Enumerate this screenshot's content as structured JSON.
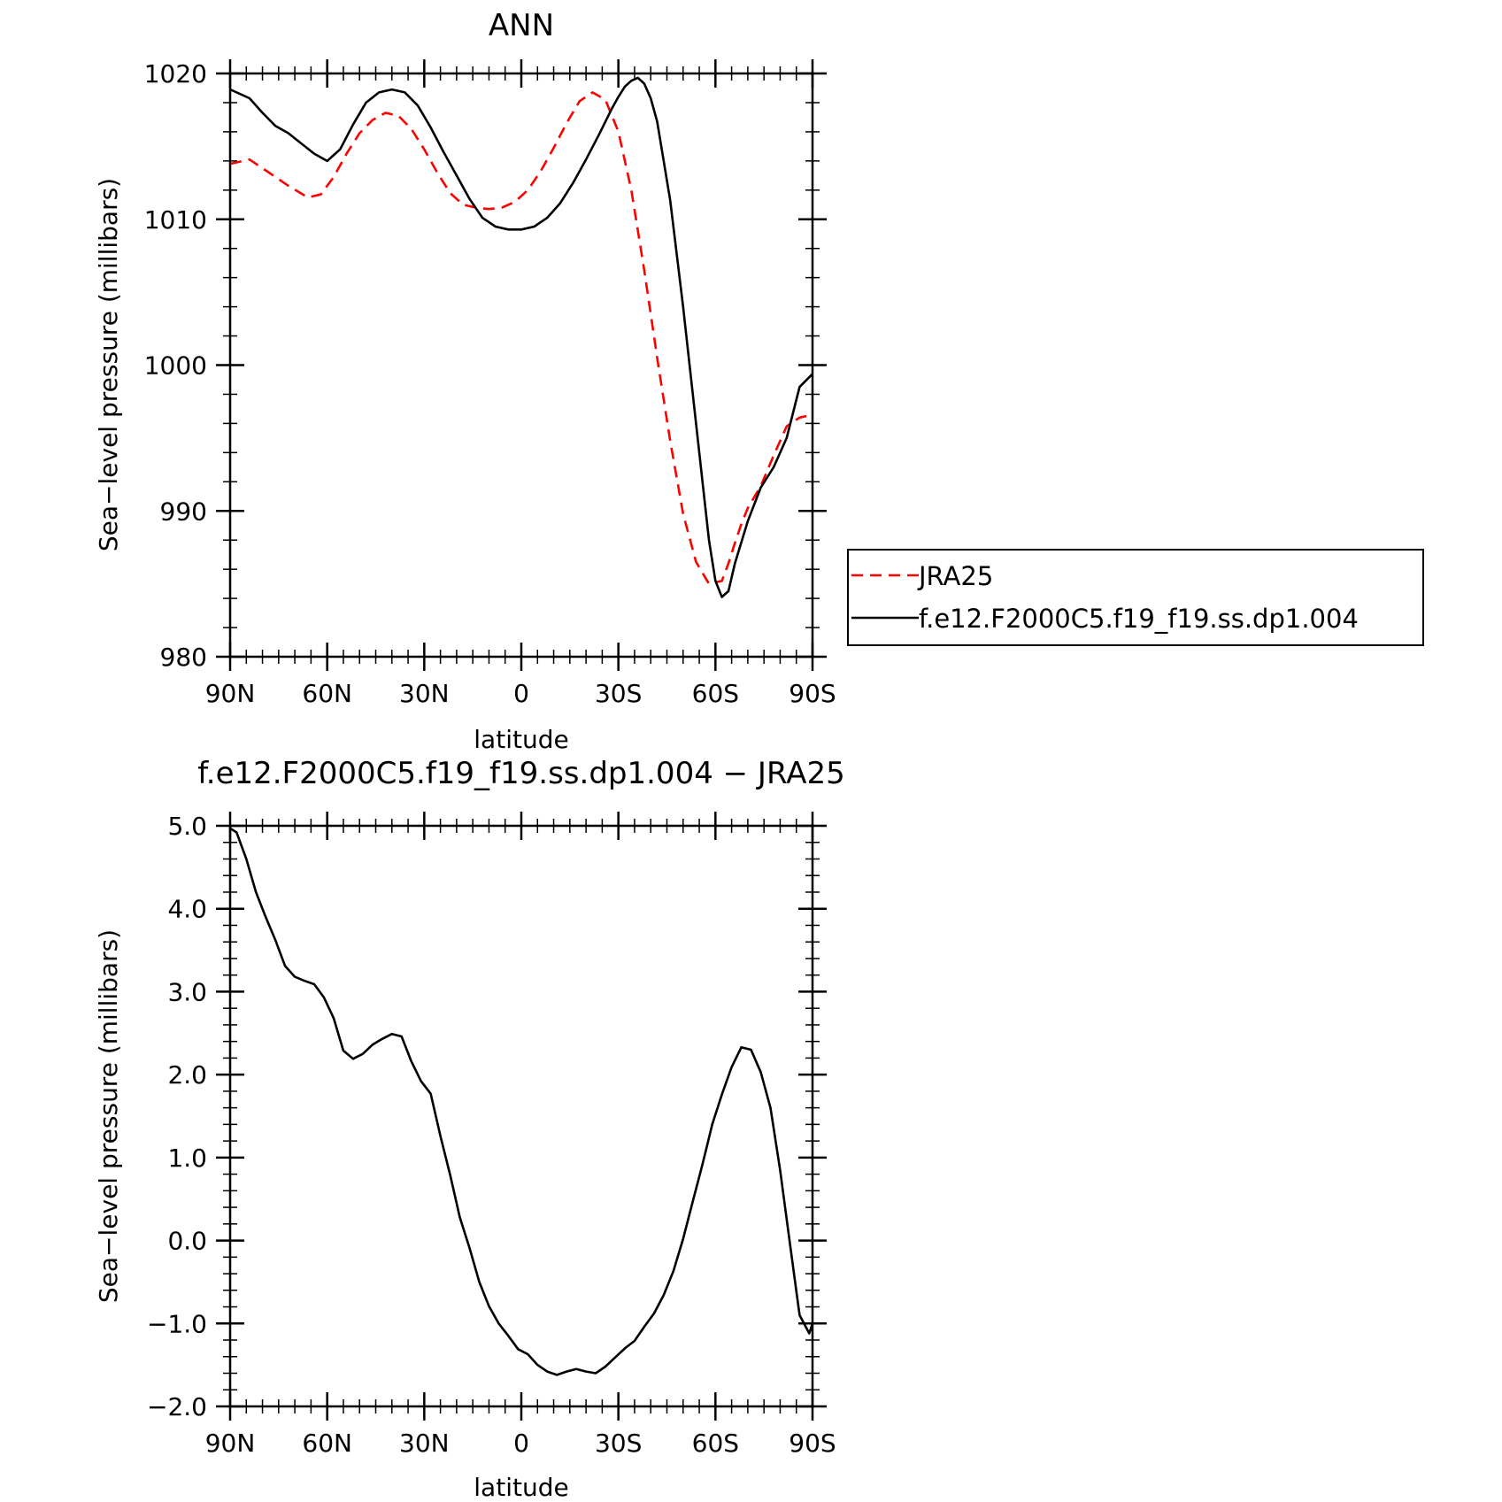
{
  "chart_data": [
    {
      "type": "line",
      "title": "ANN",
      "xlabel": "latitude",
      "ylabel": "Sea−level pressure (millibars)",
      "xlim": [
        90,
        -90
      ],
      "ylim": [
        980,
        1020
      ],
      "x_ticks": [
        90,
        60,
        30,
        0,
        -30,
        -60,
        -90
      ],
      "x_tick_labels": [
        "90N",
        "60N",
        "30N",
        "0",
        "30S",
        "60S",
        "90S"
      ],
      "y_ticks": [
        980,
        990,
        1000,
        1010,
        1020
      ],
      "y_tick_labels": [
        "980",
        "990",
        "1000",
        "1010",
        "1020"
      ],
      "legend": "right",
      "series": [
        {
          "name": "JRA25",
          "color": "#ff0000",
          "dash": "dashed",
          "x": [
            90,
            84,
            78,
            72,
            66,
            62,
            58,
            54,
            50,
            46,
            42,
            38,
            34,
            30,
            26,
            22,
            18,
            14,
            10,
            6,
            2,
            -2,
            -6,
            -10,
            -14,
            -18,
            -22,
            -26,
            -30,
            -34,
            -38,
            -42,
            -46,
            -50,
            -54,
            -58,
            -62,
            -64,
            -66,
            -68,
            -70,
            -74,
            -78,
            -82,
            -86,
            -90
          ],
          "values": [
            1013.8,
            1014.1,
            1013.2,
            1012.3,
            1011.5,
            1011.7,
            1012.9,
            1014.5,
            1015.9,
            1016.8,
            1017.3,
            1017.1,
            1016.2,
            1014.8,
            1013.2,
            1011.8,
            1011.0,
            1010.8,
            1010.7,
            1010.8,
            1011.2,
            1012.0,
            1013.3,
            1014.9,
            1016.6,
            1018.1,
            1018.7,
            1018.2,
            1016.0,
            1012.0,
            1006.5,
            1000.5,
            994.8,
            989.8,
            986.5,
            985.0,
            985.2,
            986.4,
            987.8,
            989.1,
            990.2,
            991.7,
            993.8,
            995.8,
            996.4,
            996.6
          ]
        },
        {
          "name": "f.e12.F2000C5.f19_f19.ss.dp1.004",
          "color": "#000000",
          "dash": "solid",
          "x": [
            90,
            84,
            80,
            76,
            72,
            68,
            64,
            60,
            56,
            52,
            48,
            44,
            40,
            36,
            32,
            28,
            24,
            20,
            16,
            12,
            8,
            4,
            0,
            -4,
            -8,
            -12,
            -16,
            -20,
            -24,
            -28,
            -30,
            -32,
            -34,
            -36,
            -38,
            -40,
            -42,
            -46,
            -50,
            -54,
            -58,
            -60,
            -62,
            -64,
            -66,
            -70,
            -74,
            -78,
            -82,
            -86,
            -90
          ],
          "values": [
            1018.9,
            1018.3,
            1017.3,
            1016.4,
            1015.9,
            1015.2,
            1014.5,
            1014.0,
            1014.8,
            1016.5,
            1018.0,
            1018.7,
            1018.9,
            1018.7,
            1017.8,
            1016.3,
            1014.6,
            1013.0,
            1011.4,
            1010.1,
            1009.5,
            1009.3,
            1009.3,
            1009.5,
            1010.1,
            1011.1,
            1012.5,
            1014.1,
            1015.8,
            1017.6,
            1018.4,
            1019.1,
            1019.5,
            1019.7,
            1019.3,
            1018.3,
            1016.7,
            1011.3,
            1004.0,
            996.0,
            988.0,
            985.2,
            984.1,
            984.5,
            986.4,
            989.3,
            991.6,
            993.0,
            995.0,
            998.5,
            999.4
          ]
        }
      ]
    },
    {
      "type": "line",
      "title": "f.e12.F2000C5.f19_f19.ss.dp1.004 − JRA25",
      "xlabel": "latitude",
      "ylabel": "Sea−level pressure (millibars)",
      "xlim": [
        90,
        -90
      ],
      "ylim": [
        -2.0,
        5.0
      ],
      "x_ticks": [
        90,
        60,
        30,
        0,
        -30,
        -60,
        -90
      ],
      "x_tick_labels": [
        "90N",
        "60N",
        "30N",
        "0",
        "30S",
        "60S",
        "90S"
      ],
      "y_ticks": [
        -2.0,
        -1.0,
        0.0,
        1.0,
        2.0,
        3.0,
        4.0,
        5.0
      ],
      "y_tick_labels": [
        "−2.0",
        "−1.0",
        "0.0",
        "1.0",
        "2.0",
        "3.0",
        "4.0",
        "5.0"
      ],
      "series": [
        {
          "color": "#000000",
          "dash": "solid",
          "x": [
            90,
            88,
            85,
            82,
            79,
            76,
            73,
            70,
            67,
            64,
            61,
            58,
            55,
            52,
            49,
            46,
            43,
            40,
            37,
            34,
            31,
            28,
            25,
            22,
            19,
            16,
            13,
            10,
            7,
            4,
            1,
            -2,
            -5,
            -8,
            -11,
            -14,
            -17,
            -20,
            -23,
            -26,
            -29,
            -32,
            -35,
            -38,
            -41,
            -44,
            -47,
            -50,
            -53,
            -56,
            -59,
            -62,
            -65,
            -68,
            -71,
            -74,
            -77,
            -80,
            -83,
            -86,
            -89,
            -90
          ],
          "values": [
            4.97,
            4.92,
            4.6,
            4.2,
            3.9,
            3.62,
            3.31,
            3.18,
            3.13,
            3.09,
            2.93,
            2.68,
            2.29,
            2.19,
            2.25,
            2.36,
            2.43,
            2.49,
            2.46,
            2.16,
            1.92,
            1.77,
            1.26,
            0.79,
            0.28,
            -0.09,
            -0.5,
            -0.79,
            -1.0,
            -1.15,
            -1.31,
            -1.37,
            -1.5,
            -1.58,
            -1.62,
            -1.58,
            -1.55,
            -1.58,
            -1.6,
            -1.52,
            -1.41,
            -1.3,
            -1.21,
            -1.04,
            -0.88,
            -0.66,
            -0.37,
            0.02,
            0.47,
            0.92,
            1.4,
            1.76,
            2.09,
            2.33,
            2.3,
            2.03,
            1.6,
            0.85,
            -0.03,
            -0.9,
            -1.12,
            -1.0
          ]
        }
      ]
    }
  ]
}
